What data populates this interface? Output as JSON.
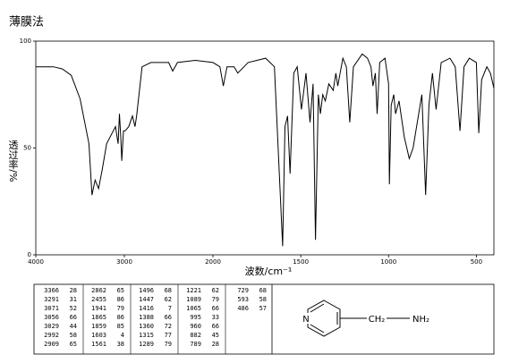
{
  "chart_data": {
    "type": "line",
    "title": "薄膜法",
    "x_label": "波数/cm⁻¹",
    "y_label": "透过率/%",
    "xlim": [
      4000,
      400
    ],
    "xticks": [
      4000,
      3000,
      2000,
      1500,
      1000,
      500
    ],
    "ylim": [
      0,
      100
    ],
    "yticks": [
      0,
      50,
      100
    ],
    "grid": false,
    "color": "#000000",
    "x": [
      4000,
      3800,
      3700,
      3600,
      3500,
      3400,
      3366,
      3330,
      3291,
      3250,
      3200,
      3100,
      3071,
      3056,
      3040,
      3029,
      3010,
      2992,
      2950,
      2909,
      2880,
      2862,
      2800,
      2700,
      2500,
      2455,
      2400,
      2200,
      2000,
      1960,
      1941,
      1920,
      1880,
      1865,
      1859,
      1800,
      1700,
      1650,
      1603,
      1590,
      1575,
      1561,
      1540,
      1520,
      1496,
      1470,
      1447,
      1430,
      1416,
      1400,
      1388,
      1375,
      1360,
      1340,
      1315,
      1300,
      1289,
      1260,
      1240,
      1221,
      1200,
      1150,
      1120,
      1100,
      1089,
      1075,
      1065,
      1050,
      1020,
      1000,
      995,
      985,
      970,
      960,
      940,
      910,
      882,
      860,
      840,
      810,
      789,
      770,
      750,
      729,
      700,
      650,
      620,
      593,
      570,
      540,
      500,
      486,
      470,
      440,
      420,
      400
    ],
    "values": [
      88,
      88,
      87,
      84,
      73,
      52,
      28,
      35,
      31,
      40,
      52,
      60,
      52,
      66,
      55,
      44,
      58,
      58,
      60,
      65,
      60,
      65,
      88,
      90,
      90,
      86,
      90,
      91,
      90,
      88,
      79,
      88,
      88,
      86,
      85,
      90,
      92,
      88,
      4,
      60,
      65,
      38,
      85,
      88,
      68,
      85,
      62,
      80,
      7,
      75,
      66,
      75,
      72,
      80,
      77,
      85,
      79,
      92,
      88,
      62,
      88,
      94,
      92,
      88,
      79,
      85,
      66,
      90,
      92,
      80,
      33,
      70,
      75,
      66,
      72,
      55,
      45,
      50,
      60,
      75,
      28,
      70,
      85,
      68,
      90,
      92,
      88,
      58,
      88,
      92,
      90,
      57,
      82,
      88,
      85,
      78
    ]
  },
  "peak_table": {
    "columns": [
      [
        [
          3366,
          28
        ],
        [
          3291,
          31
        ],
        [
          3071,
          52
        ],
        [
          3056,
          66
        ],
        [
          3029,
          44
        ],
        [
          2992,
          58
        ],
        [
          2909,
          65
        ]
      ],
      [
        [
          2862,
          65
        ],
        [
          2455,
          86
        ],
        [
          1941,
          79
        ],
        [
          1865,
          86
        ],
        [
          1859,
          85
        ],
        [
          1603,
          4
        ],
        [
          1561,
          38
        ]
      ],
      [
        [
          1496,
          68
        ],
        [
          1447,
          62
        ],
        [
          1416,
          7
        ],
        [
          1388,
          66
        ],
        [
          1360,
          72
        ],
        [
          1315,
          77
        ],
        [
          1289,
          79
        ]
      ],
      [
        [
          1221,
          62
        ],
        [
          1089,
          79
        ],
        [
          1065,
          66
        ],
        [
          995,
          33
        ],
        [
          960,
          66
        ],
        [
          882,
          45
        ],
        [
          789,
          28
        ]
      ],
      [
        [
          729,
          68
        ],
        [
          593,
          58
        ],
        [
          486,
          57
        ]
      ]
    ]
  },
  "structure": {
    "ring_atom": "N",
    "group": "CH₂",
    "amine": "NH₂"
  }
}
